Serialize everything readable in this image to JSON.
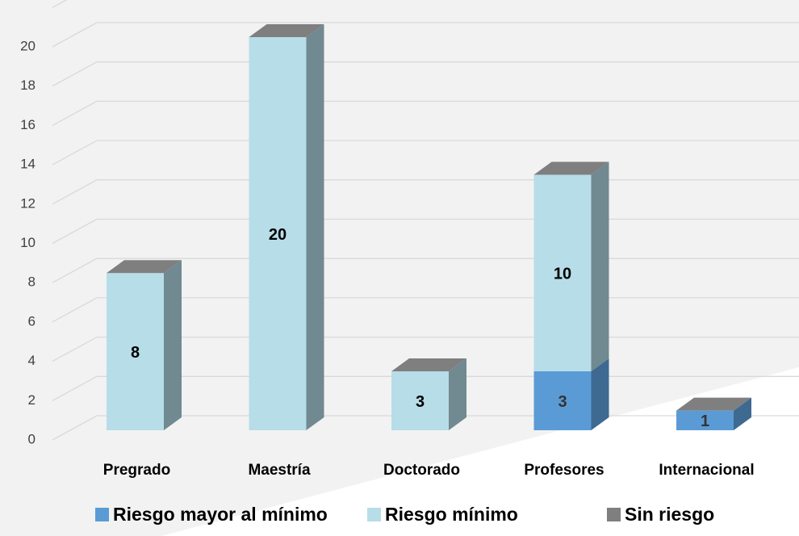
{
  "chart_data": {
    "type": "bar3d_stacked",
    "categories": [
      "Pregrado",
      "Maestría",
      "Doctorado",
      "Profesores",
      "Internacional"
    ],
    "series": [
      {
        "name": "Riesgo mayor al mínimo",
        "color": "#5b9bd5",
        "values": [
          0,
          0,
          0,
          3,
          1
        ]
      },
      {
        "name": "Riesgo mínimo",
        "color": "#b7dde8",
        "values": [
          8,
          20,
          3,
          10,
          0
        ]
      },
      {
        "name": "Sin riesgo",
        "color": "#7f7f7f",
        "values": [
          0,
          0,
          0,
          0,
          0
        ]
      }
    ],
    "ylim": [
      0,
      22
    ],
    "yticks": [
      0,
      2,
      4,
      6,
      8,
      10,
      12,
      14,
      16,
      18,
      20
    ],
    "grid": true,
    "legend": "bottom"
  }
}
